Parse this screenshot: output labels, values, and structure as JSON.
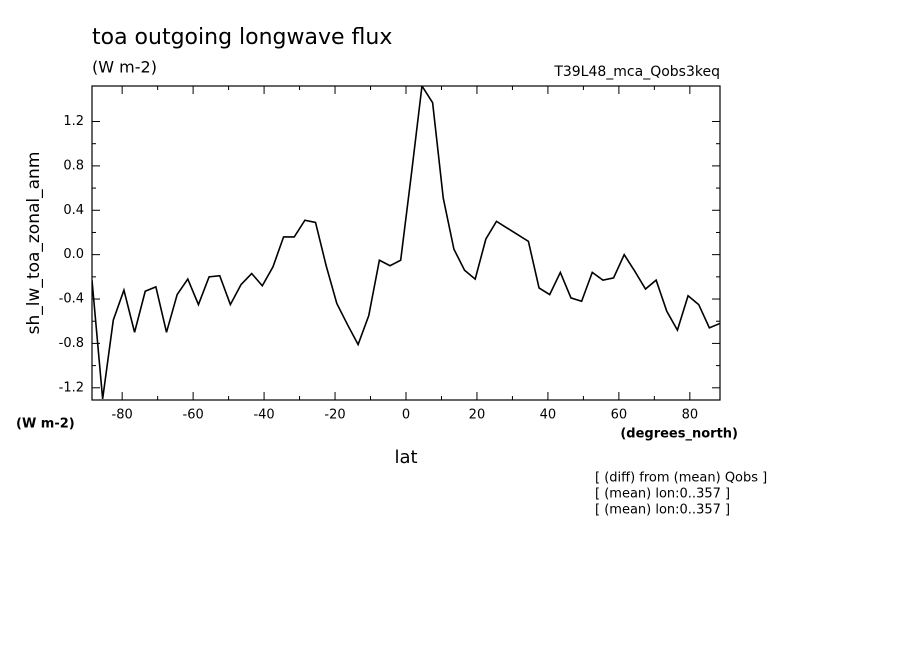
{
  "chart_data": {
    "type": "line",
    "title": "toa outgoing longwave flux",
    "subtitle": "(W m-2)",
    "run_label": "T39L48_mca_Qobs3keq",
    "y_label": "sh_lw_toa_zonal_anm",
    "y_units": "(W m-2)",
    "x_label": "lat",
    "x_units": "(degrees_north)",
    "notes": [
      "[ (diff) from (mean) Qobs ]",
      "[ (mean) lon:0..357 ]",
      "[ (mean) lon:0..357 ]"
    ],
    "x": [
      -88.5,
      -85.5,
      -82.5,
      -79.5,
      -76.5,
      -73.5,
      -70.5,
      -67.5,
      -64.5,
      -61.5,
      -58.5,
      -55.5,
      -52.5,
      -49.5,
      -46.5,
      -43.5,
      -40.5,
      -37.5,
      -34.5,
      -31.5,
      -28.5,
      -25.5,
      -22.5,
      -19.5,
      -16.5,
      -13.5,
      -10.5,
      -7.5,
      -4.5,
      -1.5,
      1.5,
      4.5,
      7.5,
      10.5,
      13.5,
      16.5,
      19.5,
      22.5,
      25.5,
      28.5,
      31.5,
      34.5,
      37.5,
      40.5,
      43.5,
      46.5,
      49.5,
      52.5,
      55.5,
      58.5,
      61.5,
      64.5,
      67.5,
      70.5,
      73.5,
      76.5,
      79.5,
      82.5,
      85.5,
      88.5
    ],
    "series": [
      {
        "color": "#000000",
        "values": [
          -0.23,
          -1.3,
          -0.59,
          -0.32,
          -0.7,
          -0.33,
          -0.29,
          -0.7,
          -0.36,
          -0.22,
          -0.45,
          -0.2,
          -0.19,
          -0.45,
          -0.27,
          -0.17,
          -0.28,
          -0.11,
          0.16,
          0.16,
          0.31,
          0.29,
          -0.1,
          -0.44,
          -0.63,
          -0.81,
          -0.55,
          -0.05,
          -0.1,
          -0.05,
          0.72,
          1.52,
          1.37,
          0.51,
          0.05,
          -0.14,
          -0.22,
          0.14,
          0.3,
          0.24,
          0.18,
          0.12,
          -0.3,
          -0.36,
          -0.16,
          -0.39,
          -0.42,
          -0.16,
          -0.23,
          -0.21,
          0.0,
          -0.15,
          -0.31,
          -0.23,
          -0.51,
          -0.68,
          -0.37,
          -0.45,
          -0.66,
          -0.62
        ]
      }
    ],
    "xlim": [
      -88.5,
      88.5
    ],
    "ylim": [
      -1.31,
      1.52
    ],
    "xticks": [
      -80,
      -60,
      -40,
      -20,
      0,
      20,
      40,
      60,
      80
    ],
    "yticks": [
      -1.2,
      -0.8,
      -0.4,
      {
        "value": 0,
        "label": "0.0"
      },
      0.4,
      0.8,
      1.2
    ]
  }
}
